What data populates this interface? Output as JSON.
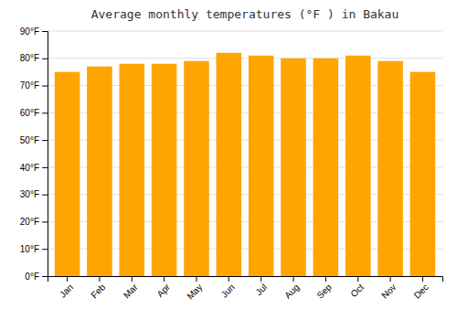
{
  "chart_data": {
    "type": "bar",
    "title": "Average monthly temperatures (°F ) in Bakau",
    "categories": [
      "Jan",
      "Feb",
      "Mar",
      "Apr",
      "May",
      "Jun",
      "Jul",
      "Aug",
      "Sep",
      "Oct",
      "Nov",
      "Dec"
    ],
    "values": [
      75,
      77,
      78,
      78,
      79,
      82,
      81,
      80,
      80,
      81,
      79,
      75
    ],
    "color": "#FFA500",
    "ylim": [
      0,
      90
    ],
    "yticks": [
      {
        "value": 0,
        "label": "0°F"
      },
      {
        "value": 10,
        "label": "10°F"
      },
      {
        "value": 20,
        "label": "20°F"
      },
      {
        "value": 30,
        "label": "30°F"
      },
      {
        "value": 40,
        "label": "40°F"
      },
      {
        "value": 50,
        "label": "50°F"
      },
      {
        "value": 60,
        "label": "60°F"
      },
      {
        "value": 70,
        "label": "70°F"
      },
      {
        "value": 80,
        "label": "80°F"
      },
      {
        "value": 90,
        "label": "90°F"
      }
    ],
    "grid": true
  }
}
